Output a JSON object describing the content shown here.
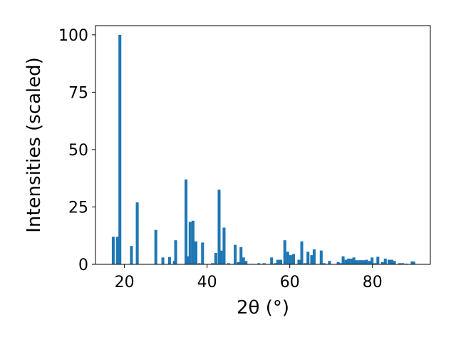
{
  "chart_data": {
    "type": "bar",
    "xlabel": "2θ (°)",
    "ylabel": "Intensities (scaled)",
    "xlim": [
      13,
      94
    ],
    "ylim": [
      0,
      104
    ],
    "xticks": [
      20,
      40,
      60,
      80
    ],
    "yticks": [
      0,
      25,
      50,
      75,
      100
    ],
    "bar_color": "#1f77b4",
    "bar_width": 0.7,
    "grid": false,
    "x": [
      17.3,
      18.3,
      18.9,
      21.7,
      23.1,
      27.6,
      29.3,
      30.9,
      32.1,
      32.4,
      34.9,
      35.3,
      35.9,
      36.6,
      37.3,
      38.1,
      38.9,
      41.3,
      42.1,
      42.9,
      43.4,
      44.1,
      45.2,
      46.8,
      47.6,
      48.2,
      48.8,
      49.4,
      50.7,
      52.5,
      53.8,
      55.6,
      56.5,
      57.1,
      57.8,
      58.8,
      59.5,
      60.2,
      60.9,
      62.2,
      62.9,
      63.7,
      64.4,
      65.3,
      65.9,
      67.6,
      68.3,
      69.6,
      71.7,
      72.3,
      72.9,
      73.6,
      74.2,
      74.9,
      75.5,
      76.1,
      76.8,
      77.4,
      78.0,
      78.6,
      79.3,
      79.9,
      80.6,
      81.3,
      82.4,
      83.1,
      84.0,
      84.7,
      85.3,
      86.6,
      87.3,
      88.3,
      89.6,
      90.0
    ],
    "values": [
      12,
      12,
      100,
      8,
      27,
      15,
      3,
      3.2,
      1.5,
      10.5,
      37,
      3.5,
      18.5,
      19,
      10,
      0.5,
      9.5,
      0.5,
      5,
      32.5,
      6,
      16,
      0.5,
      8.5,
      1,
      7.5,
      3,
      1.5,
      0.2,
      0.5,
      0.5,
      3,
      0.5,
      2,
      2,
      10.5,
      5.5,
      4,
      4.5,
      2,
      10,
      0.5,
      5.5,
      4,
      6.5,
      6,
      0.5,
      1.5,
      1,
      0.5,
      3.5,
      2,
      2.5,
      2.5,
      3,
      1.8,
      1.8,
      1.8,
      1.8,
      2,
      1.5,
      3,
      0.5,
      3.3,
      1,
      2.5,
      2,
      2,
      1.5,
      0.5,
      0.5,
      0.3,
      1.3,
      1.2
    ]
  }
}
